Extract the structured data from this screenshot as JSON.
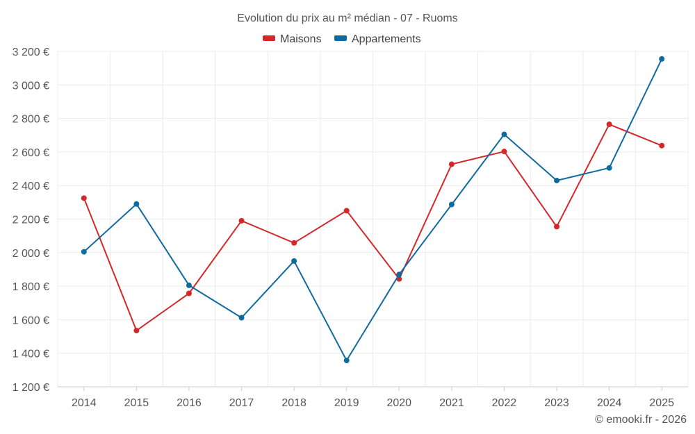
{
  "chart_data": {
    "type": "line",
    "title": "Evolution du prix au m² médian - 07 - Ruoms",
    "categories": [
      "2014",
      "2015",
      "2016",
      "2017",
      "2018",
      "2019",
      "2020",
      "2021",
      "2022",
      "2023",
      "2024",
      "2025"
    ],
    "series": [
      {
        "name": "Maisons",
        "color": "#d62728",
        "values": [
          2325,
          1535,
          1757,
          2190,
          2058,
          2250,
          1843,
          2527,
          2603,
          2155,
          2765,
          2638
        ]
      },
      {
        "name": "Appartements",
        "color": "#0f6aa0",
        "values": [
          2005,
          2290,
          1805,
          1612,
          1950,
          1357,
          1870,
          2287,
          2705,
          2430,
          2505,
          3155
        ]
      }
    ],
    "ylim": [
      1200,
      3200
    ],
    "yticks": [
      1200,
      1400,
      1600,
      1800,
      2000,
      2200,
      2400,
      2600,
      2800,
      3000,
      3200
    ],
    "ytick_labels": [
      "1 200 €",
      "1 400 €",
      "1 600 €",
      "1 800 €",
      "2 000 €",
      "2 200 €",
      "2 400 €",
      "2 600 €",
      "2 800 €",
      "3 000 €",
      "3 200 €"
    ],
    "grid": true,
    "legend_position": "top-center",
    "credit": "© emooki.fr - 2026"
  }
}
